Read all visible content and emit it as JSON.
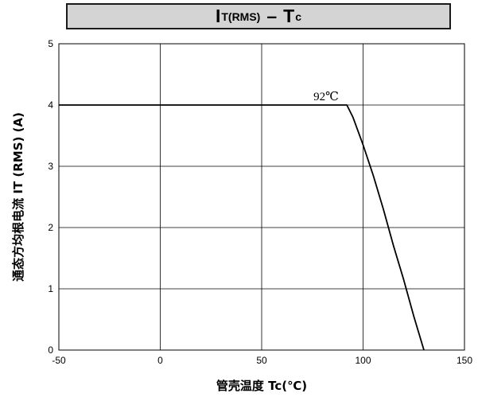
{
  "title": {
    "main": "I",
    "sub": "T(RMS)",
    "dash": "–",
    "main2": "T",
    "sub2": "c"
  },
  "chart_data": {
    "type": "line",
    "x_ticks": [
      "-50",
      "0",
      "50",
      "100",
      "150"
    ],
    "y_ticks": [
      "0",
      "1",
      "2",
      "3",
      "4",
      "5"
    ],
    "xlim": [
      -50,
      150
    ],
    "ylim": [
      0,
      5
    ],
    "grid": true,
    "xlabel": "管壳温度 Tc(℃)",
    "ylabel": "通态方均根电流 IT (RMS) (A)",
    "annotation": "92℃",
    "series": [
      {
        "x": [
          -50,
          0,
          50,
          92,
          95,
          100,
          105,
          110,
          115,
          120,
          125,
          130
        ],
        "y": [
          4,
          4,
          4,
          4,
          3.8,
          3.35,
          2.85,
          2.3,
          1.7,
          1.15,
          0.55,
          0
        ]
      }
    ],
    "line_color": "#000000"
  }
}
